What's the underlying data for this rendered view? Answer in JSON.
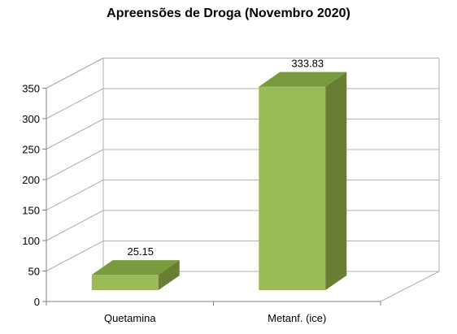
{
  "chart_data": {
    "type": "bar",
    "title": "Apreensões de Droga (Novembro 2020)",
    "categories": [
      "Quetamina",
      "Metanf. (ice)"
    ],
    "values": [
      25.15,
      333.83
    ],
    "data_labels": [
      "25.15",
      "333.83"
    ],
    "y_ticks": [
      "0",
      "50",
      "100",
      "150",
      "200",
      "250",
      "300",
      "350"
    ],
    "ylim": [
      0,
      350
    ],
    "grid": true,
    "three_d": true,
    "legend": "none",
    "colors": {
      "bar_front": "#9bbb59",
      "bar_top": "#7a9a3e",
      "bar_side": "#687f33",
      "grid": "#b0b0b0",
      "axis": "#808080"
    }
  }
}
